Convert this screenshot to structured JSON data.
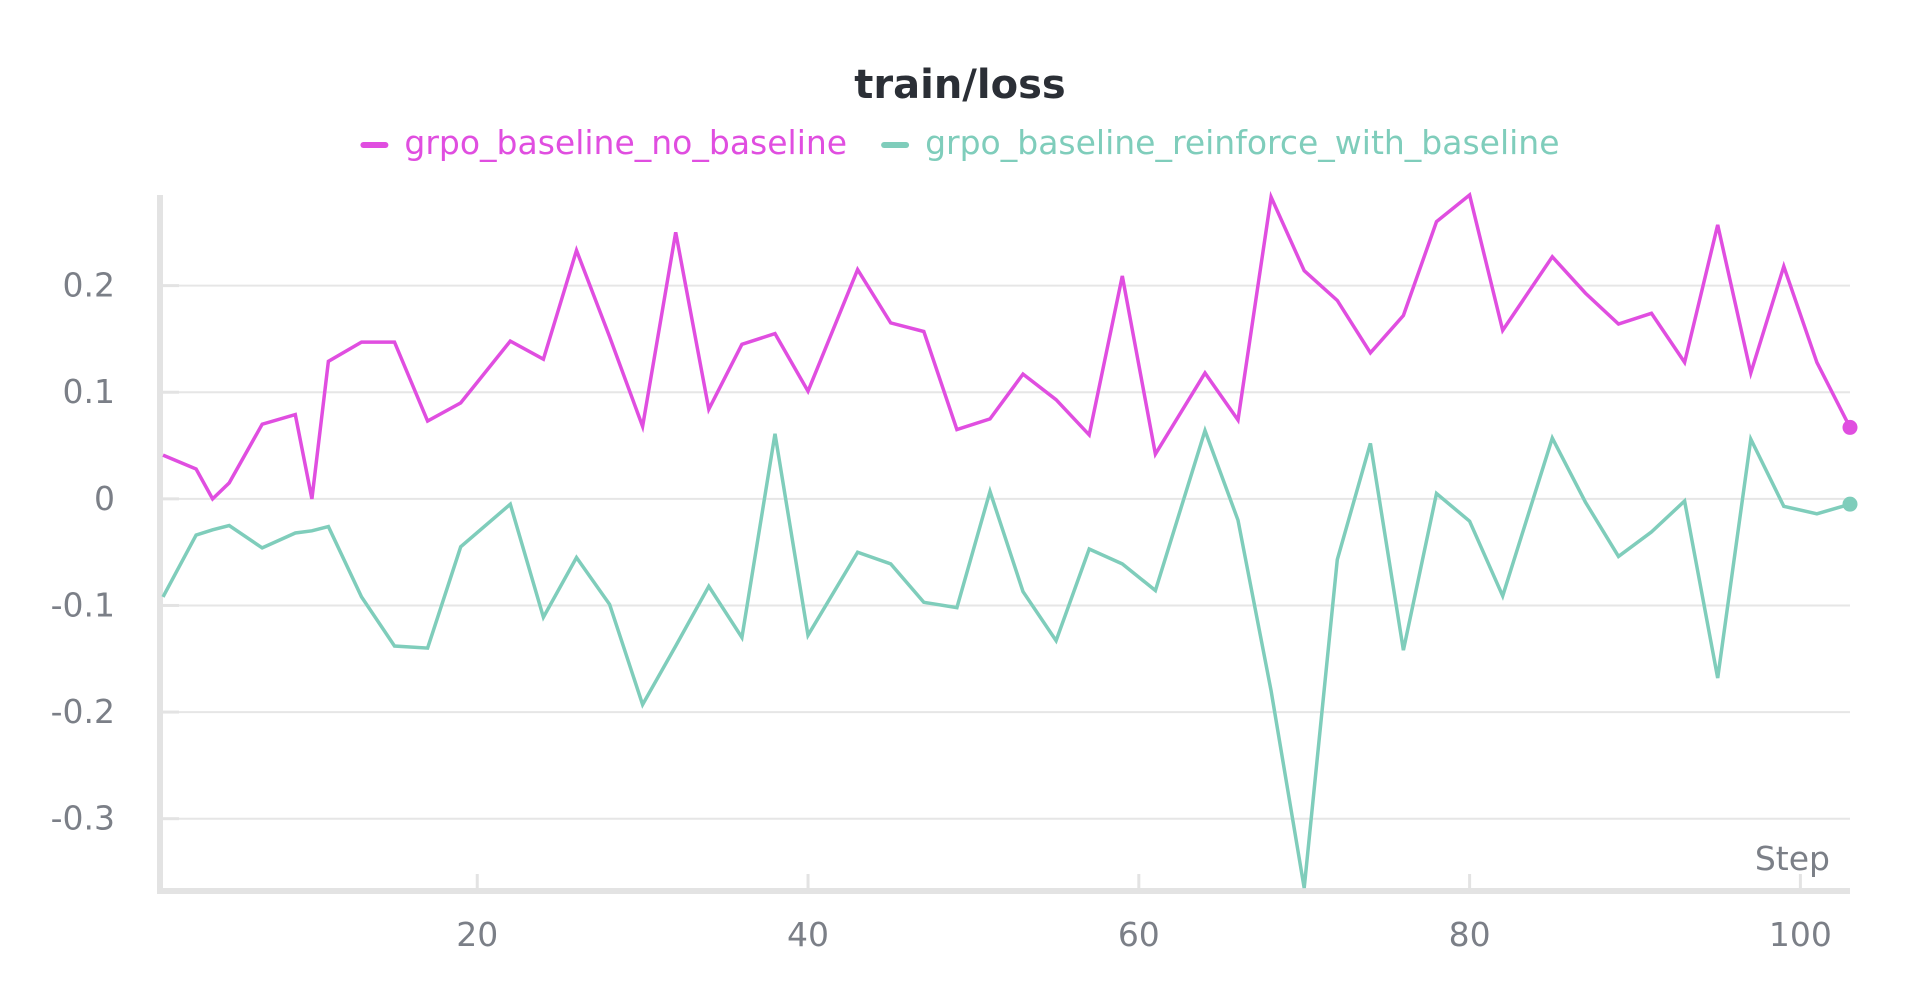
{
  "chart_data": {
    "type": "line",
    "title": "train/loss",
    "xlabel": "Step",
    "ylabel": "",
    "xlim": [
      1,
      103
    ],
    "ylim": [
      -0.365,
      0.285
    ],
    "x_ticks": [
      20,
      40,
      60,
      80,
      100
    ],
    "y_ticks": [
      {
        "value": 0.2,
        "label": "0.2"
      },
      {
        "value": 0.1,
        "label": "0.1"
      },
      {
        "value": 0,
        "label": "0"
      },
      {
        "value": -0.1,
        "label": "-0.1"
      },
      {
        "value": -0.2,
        "label": "-0.2"
      },
      {
        "value": -0.3,
        "label": "-0.3"
      }
    ],
    "grid": true,
    "legend_position": "top-center",
    "x": [
      1,
      3,
      4,
      5,
      7,
      9,
      10,
      11,
      13,
      15,
      17,
      19,
      22,
      24,
      26,
      28,
      30,
      32,
      34,
      36,
      38,
      40,
      43,
      45,
      47,
      49,
      51,
      53,
      55,
      57,
      59,
      61,
      64,
      66,
      68,
      70,
      72,
      74,
      76,
      78,
      80,
      82,
      85,
      87,
      89,
      91,
      93,
      95,
      97,
      99,
      101,
      103
    ],
    "series": [
      {
        "name": "grpo_baseline_no_baseline",
        "color": "#e04ee0",
        "values": [
          0.041,
          0.028,
          0.0,
          0.015,
          0.07,
          0.079,
          0.0,
          0.129,
          0.147,
          0.147,
          0.073,
          0.09,
          0.148,
          0.131,
          0.233,
          0.152,
          0.068,
          0.25,
          0.084,
          0.145,
          0.155,
          0.101,
          0.215,
          0.165,
          0.157,
          0.065,
          0.075,
          0.117,
          0.093,
          0.06,
          0.209,
          0.042,
          0.118,
          0.074,
          0.283,
          0.214,
          0.186,
          0.137,
          0.172,
          0.26,
          0.285,
          0.158,
          0.227,
          0.193,
          0.164,
          0.174,
          0.128,
          0.257,
          0.118,
          0.218,
          0.128,
          0.067
        ]
      },
      {
        "name": "grpo_baseline_reinforce_with_baseline",
        "color": "#7fcdbb",
        "values": [
          -0.092,
          -0.034,
          -0.029,
          -0.025,
          -0.046,
          -0.032,
          -0.03,
          -0.026,
          -0.092,
          -0.138,
          -0.14,
          -0.045,
          -0.005,
          -0.111,
          -0.055,
          -0.099,
          -0.193,
          -0.138,
          -0.082,
          -0.13,
          0.061,
          -0.128,
          -0.05,
          -0.061,
          -0.097,
          -0.102,
          0.007,
          -0.087,
          -0.133,
          -0.047,
          -0.061,
          -0.086,
          0.064,
          -0.02,
          -0.18,
          -0.365,
          -0.057,
          0.052,
          -0.142,
          0.005,
          -0.021,
          -0.091,
          0.057,
          -0.003,
          -0.054,
          -0.031,
          -0.002,
          -0.168,
          0.056,
          -0.007,
          -0.014,
          -0.005
        ]
      }
    ]
  }
}
